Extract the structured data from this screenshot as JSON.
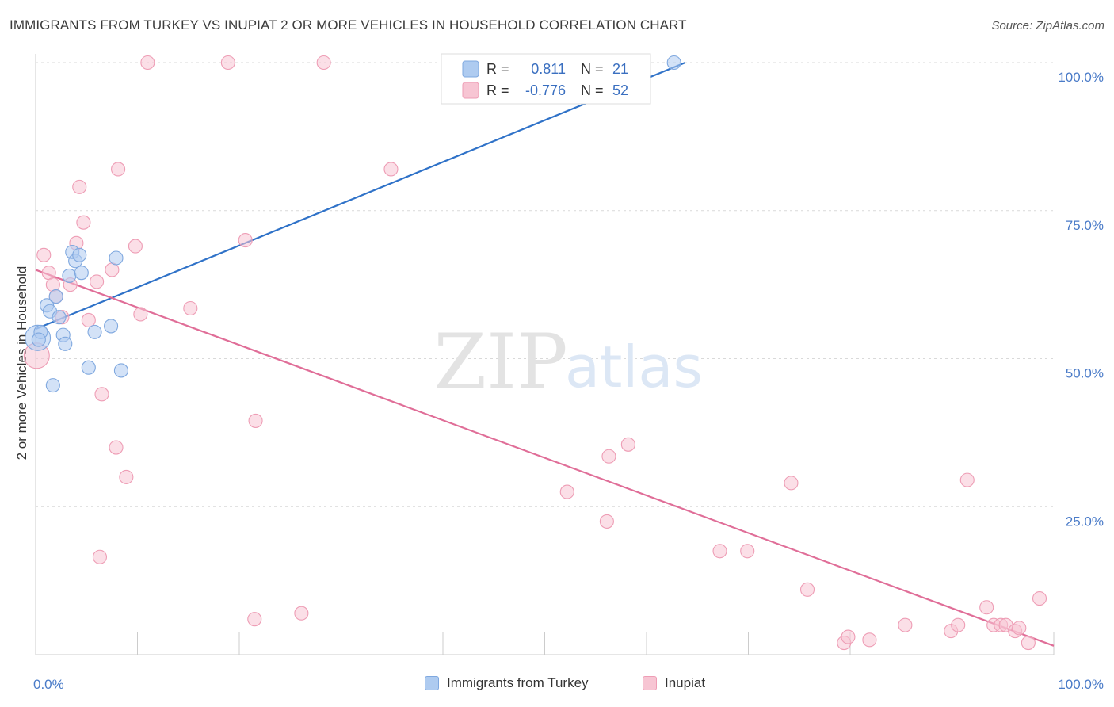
{
  "title": "IMMIGRANTS FROM TURKEY VS INUPIAT 2 OR MORE VEHICLES IN HOUSEHOLD CORRELATION CHART",
  "source": "Source: ZipAtlas.com",
  "watermark": {
    "zip": "ZIP",
    "atlas": "atlas"
  },
  "colors": {
    "blue_fill": "#aecbf0",
    "blue_stroke": "#7fa8df",
    "blue_line": "#2f72c8",
    "pink_fill": "#f7c5d3",
    "pink_stroke": "#ee9db5",
    "pink_line": "#e06e98",
    "grid": "#d9d9d9",
    "tick_label": "#4a7bc8"
  },
  "legend": {
    "rows": [
      {
        "r_label": "R =",
        "r_value": "0.811",
        "n_label": "N =",
        "n_value": "21"
      },
      {
        "r_label": "R =",
        "r_value": "-0.776",
        "n_label": "N =",
        "n_value": "52"
      }
    ]
  },
  "bottom_legend": [
    {
      "label": "Immigrants from Turkey"
    },
    {
      "label": "Inupiat"
    }
  ],
  "chart_data": {
    "type": "scatter",
    "title": "IMMIGRANTS FROM TURKEY VS INUPIAT 2 OR MORE VEHICLES IN HOUSEHOLD CORRELATION CHART",
    "xlabel": "",
    "ylabel": "2 or more Vehicles in Household",
    "xlim": [
      0,
      100
    ],
    "ylim": [
      0,
      100
    ],
    "x_tick_labels": [
      "0.0%",
      "100.0%"
    ],
    "y_ticks": [
      25,
      50,
      75,
      100
    ],
    "y_tick_labels": [
      "25.0%",
      "50.0%",
      "75.0%",
      "100.0%"
    ],
    "grid": true,
    "legend_position": "top-center",
    "series": [
      {
        "name": "Immigrants from Turkey",
        "color": "#aecbf0",
        "trend": {
          "x": [
            0,
            63.8
          ],
          "y": [
            55.0,
            100.0
          ]
        },
        "points": [
          {
            "x": 0.2,
            "y": 53.5,
            "big": true
          },
          {
            "x": 0.5,
            "y": 54.5
          },
          {
            "x": 1.1,
            "y": 59.0
          },
          {
            "x": 1.4,
            "y": 58.0
          },
          {
            "x": 1.7,
            "y": 45.5
          },
          {
            "x": 2.0,
            "y": 60.5
          },
          {
            "x": 2.3,
            "y": 57.0
          },
          {
            "x": 2.7,
            "y": 54.0
          },
          {
            "x": 2.9,
            "y": 52.5
          },
          {
            "x": 3.3,
            "y": 64.0
          },
          {
            "x": 3.6,
            "y": 68.0
          },
          {
            "x": 3.9,
            "y": 66.5
          },
          {
            "x": 4.3,
            "y": 67.5
          },
          {
            "x": 4.5,
            "y": 64.5
          },
          {
            "x": 5.2,
            "y": 48.5
          },
          {
            "x": 5.8,
            "y": 54.5
          },
          {
            "x": 7.4,
            "y": 55.5
          },
          {
            "x": 7.9,
            "y": 67.0
          },
          {
            "x": 8.4,
            "y": 48.0
          },
          {
            "x": 62.7,
            "y": 100.0
          },
          {
            "x": 0.3,
            "y": 53.2
          }
        ]
      },
      {
        "name": "Inupiat",
        "color": "#f7c5d3",
        "trend": {
          "x": [
            0,
            100
          ],
          "y": [
            65.0,
            1.5
          ]
        },
        "points": [
          {
            "x": 0.1,
            "y": 50.5,
            "big": true
          },
          {
            "x": 0.8,
            "y": 67.5
          },
          {
            "x": 1.3,
            "y": 64.5
          },
          {
            "x": 1.7,
            "y": 62.5
          },
          {
            "x": 2.0,
            "y": 60.5
          },
          {
            "x": 2.6,
            "y": 57.0
          },
          {
            "x": 3.4,
            "y": 62.5
          },
          {
            "x": 4.0,
            "y": 69.5
          },
          {
            "x": 4.3,
            "y": 79.0
          },
          {
            "x": 4.7,
            "y": 73.0
          },
          {
            "x": 5.2,
            "y": 56.5
          },
          {
            "x": 6.0,
            "y": 63.0
          },
          {
            "x": 6.3,
            "y": 16.5
          },
          {
            "x": 6.5,
            "y": 44.0
          },
          {
            "x": 7.5,
            "y": 65.0
          },
          {
            "x": 7.9,
            "y": 35.0
          },
          {
            "x": 8.1,
            "y": 82.0
          },
          {
            "x": 8.9,
            "y": 30.0
          },
          {
            "x": 9.8,
            "y": 69.0
          },
          {
            "x": 10.3,
            "y": 57.5
          },
          {
            "x": 11.0,
            "y": 100.0
          },
          {
            "x": 15.2,
            "y": 58.5
          },
          {
            "x": 18.9,
            "y": 100.0
          },
          {
            "x": 20.6,
            "y": 70.0
          },
          {
            "x": 21.5,
            "y": 6.0
          },
          {
            "x": 21.6,
            "y": 39.5
          },
          {
            "x": 26.1,
            "y": 7.0
          },
          {
            "x": 28.3,
            "y": 100.0
          },
          {
            "x": 34.9,
            "y": 82.0
          },
          {
            "x": 52.2,
            "y": 27.5
          },
          {
            "x": 56.1,
            "y": 22.5
          },
          {
            "x": 56.3,
            "y": 33.5
          },
          {
            "x": 58.2,
            "y": 35.5
          },
          {
            "x": 67.2,
            "y": 17.5
          },
          {
            "x": 69.9,
            "y": 17.5
          },
          {
            "x": 74.2,
            "y": 29.0
          },
          {
            "x": 75.8,
            "y": 11.0
          },
          {
            "x": 79.4,
            "y": 2.0
          },
          {
            "x": 79.8,
            "y": 3.0
          },
          {
            "x": 81.9,
            "y": 2.5
          },
          {
            "x": 85.4,
            "y": 5.0
          },
          {
            "x": 89.9,
            "y": 4.0
          },
          {
            "x": 90.6,
            "y": 5.0
          },
          {
            "x": 91.5,
            "y": 29.5
          },
          {
            "x": 93.4,
            "y": 8.0
          },
          {
            "x": 94.1,
            "y": 5.0
          },
          {
            "x": 94.8,
            "y": 5.0
          },
          {
            "x": 95.3,
            "y": 5.0
          },
          {
            "x": 96.2,
            "y": 4.0
          },
          {
            "x": 96.6,
            "y": 4.5
          },
          {
            "x": 97.5,
            "y": 2.0
          },
          {
            "x": 98.6,
            "y": 9.5
          }
        ]
      }
    ]
  }
}
